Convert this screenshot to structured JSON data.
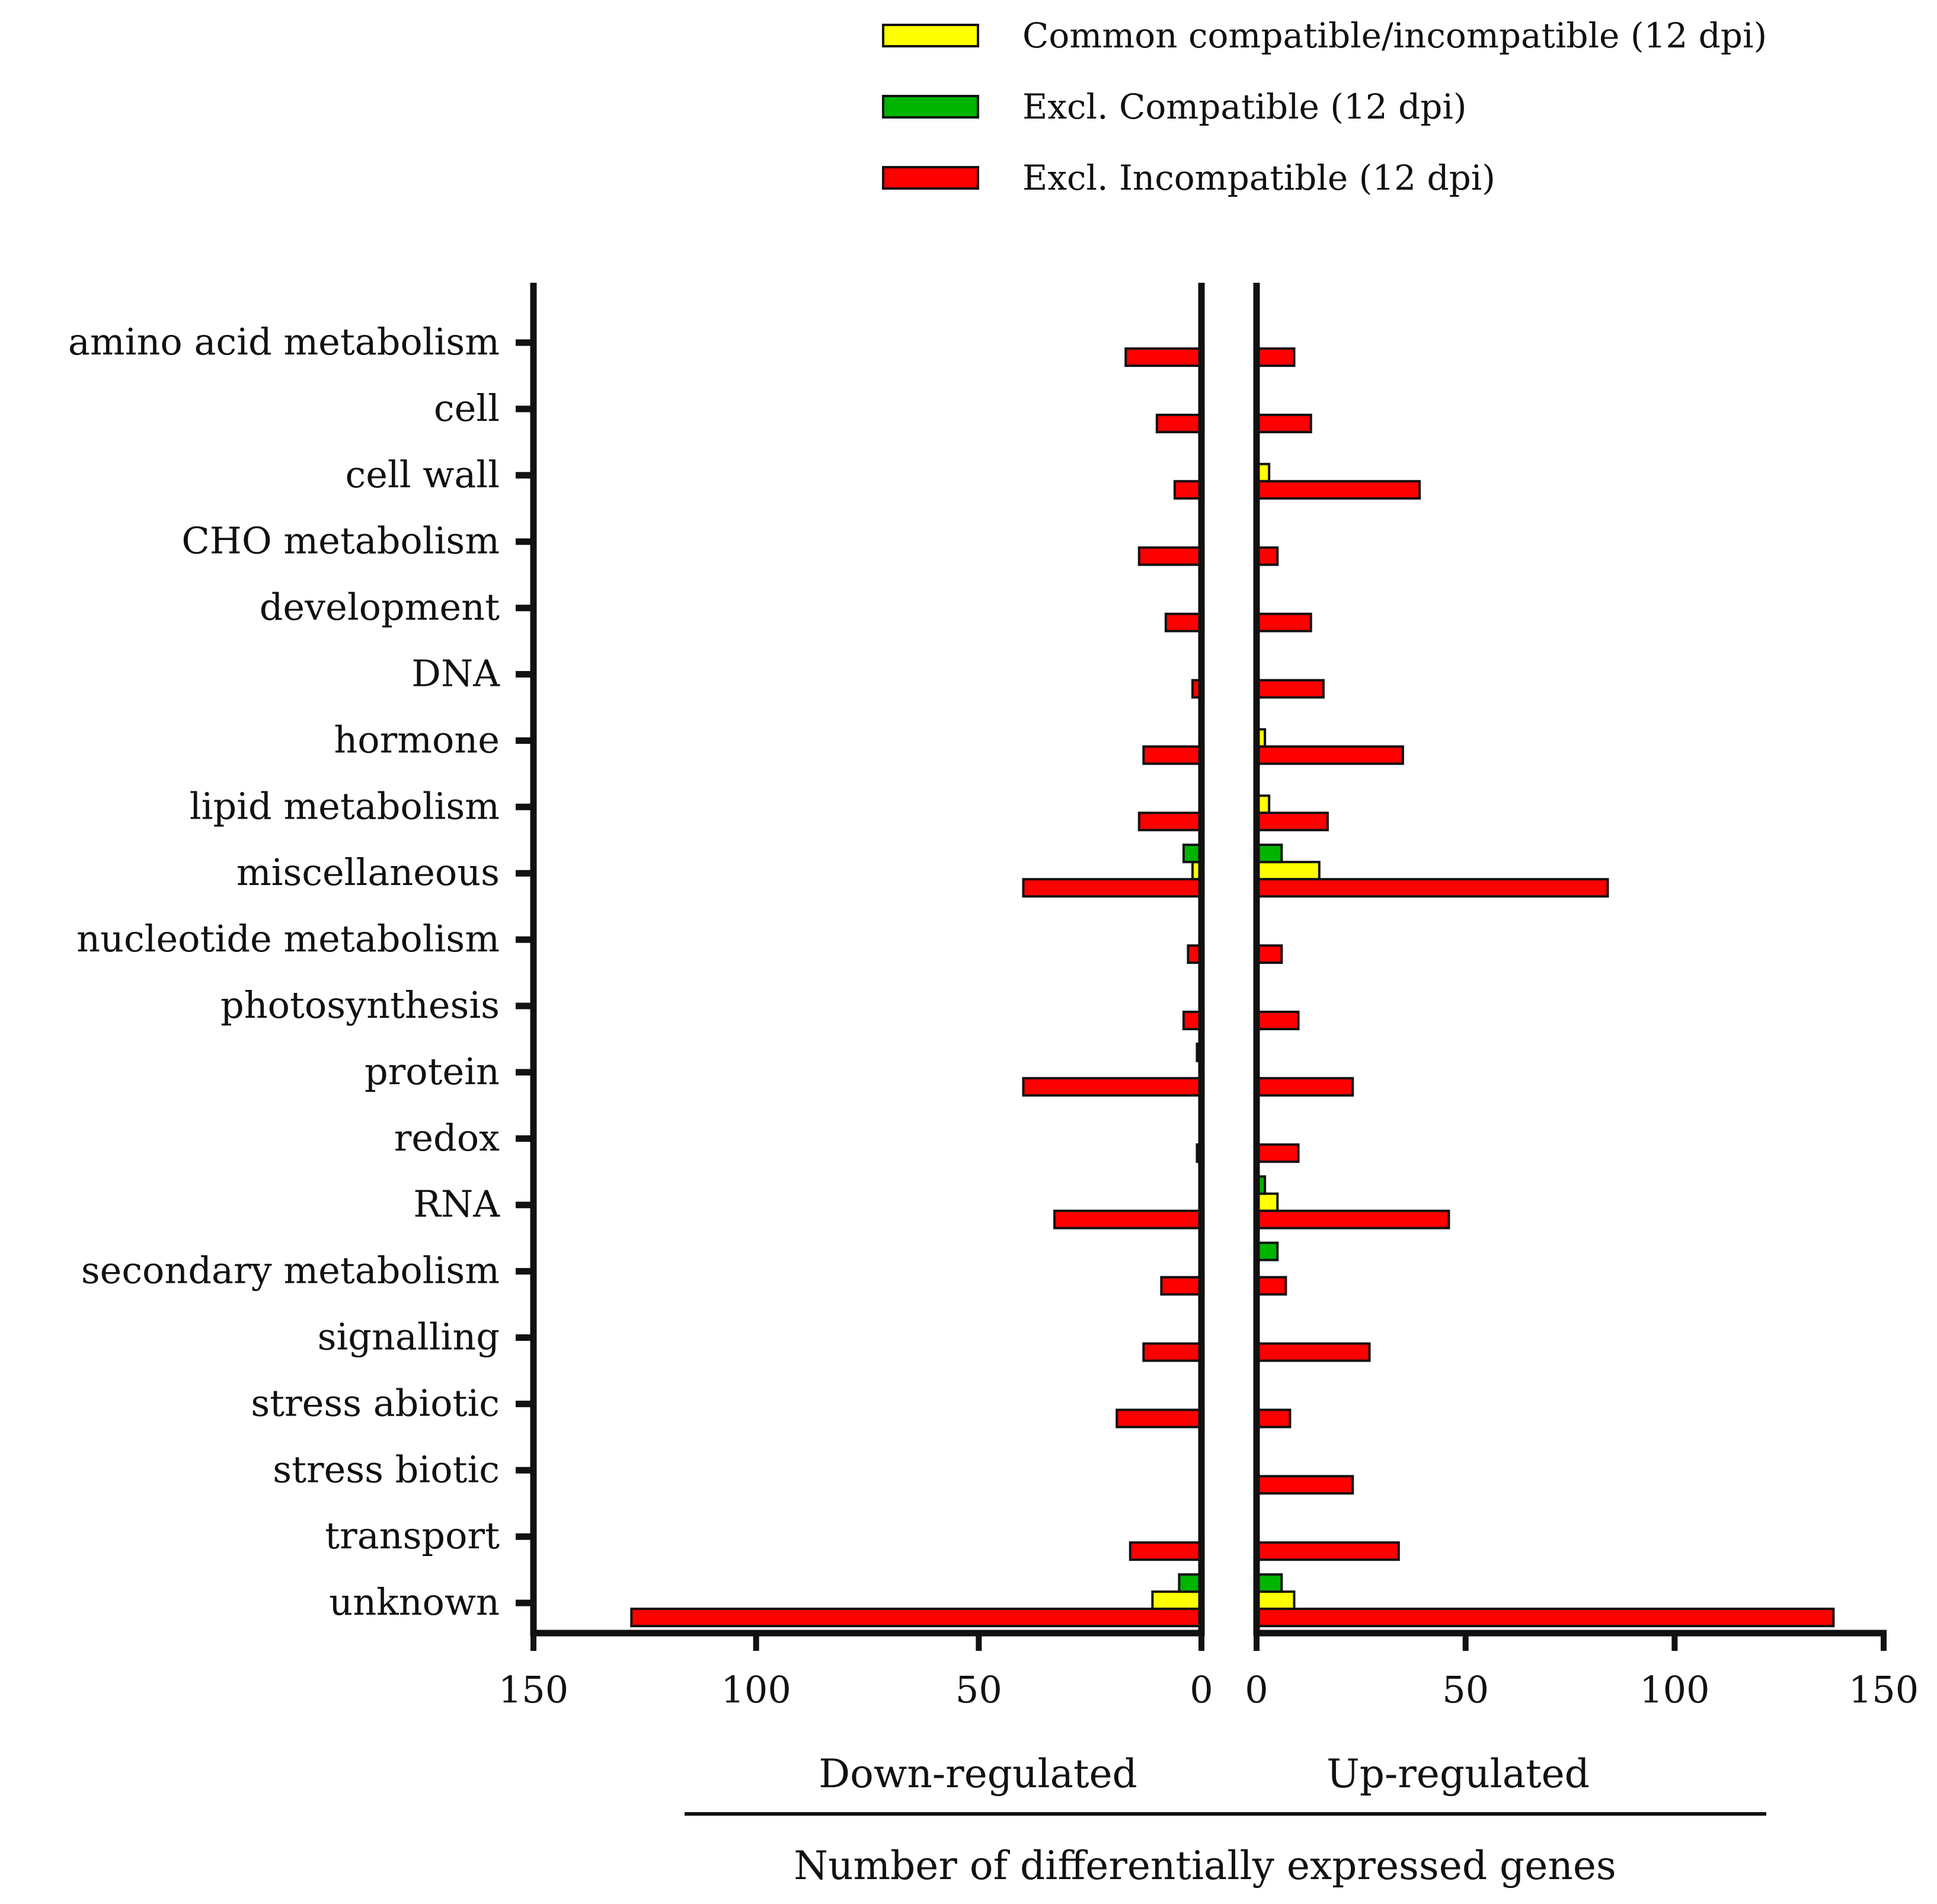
{
  "chart_data": {
    "type": "bar",
    "orientation": "horizontal",
    "layout": "mirrored (back-to-back) panels",
    "xlabel": "Number of differentially expressed genes",
    "panels": [
      {
        "name": "Down-regulated",
        "xlim": [
          150,
          0
        ],
        "ticks": [
          "150",
          "100",
          "50",
          "0"
        ]
      },
      {
        "name": "Up-regulated",
        "xlim": [
          0,
          150
        ],
        "ticks": [
          "0",
          "50",
          "100",
          "150"
        ]
      }
    ],
    "legend": {
      "position": "top-right"
    },
    "categories": [
      "amino acid metabolism",
      "cell",
      "cell wall",
      "CHO metabolism",
      "development",
      "DNA",
      "hormone",
      "lipid metabolism",
      "miscellaneous",
      "nucleotide metabolism",
      "photosynthesis",
      "protein",
      "redox",
      "RNA",
      "secondary metabolism",
      "signalling",
      "stress abiotic",
      "stress biotic",
      "transport",
      "unknown"
    ],
    "series": [
      {
        "name": "Common compatible/incompatible (12 dpi)",
        "color": "#ffff00",
        "down": [
          0,
          0,
          0,
          0,
          0,
          0,
          0,
          0,
          2,
          0,
          0,
          0,
          0,
          0,
          0,
          0,
          0,
          0,
          0,
          11
        ],
        "up": [
          0,
          0,
          3,
          0,
          0,
          0,
          2,
          3,
          15,
          0,
          0,
          0,
          0,
          5,
          0,
          0,
          0,
          0,
          0,
          9
        ]
      },
      {
        "name": "Excl. Compatible (12 dpi)",
        "color": "#00b400",
        "down": [
          0,
          0,
          0,
          0,
          0,
          0,
          0,
          0,
          4,
          0,
          0,
          1,
          0,
          0,
          0,
          0,
          0,
          0,
          0,
          5
        ],
        "up": [
          0,
          0,
          0,
          0,
          0,
          0,
          0,
          0,
          6,
          0,
          0,
          0,
          0,
          2,
          5,
          0,
          0,
          0,
          0,
          6
        ]
      },
      {
        "name": "Excl. Incompatible (12 dpi)",
        "color": "#ff0000",
        "down": [
          17,
          10,
          6,
          14,
          8,
          2,
          13,
          14,
          40,
          3,
          4,
          40,
          1,
          33,
          9,
          13,
          19,
          0,
          16,
          128
        ],
        "up": [
          9,
          13,
          39,
          5,
          13,
          16,
          35,
          17,
          84,
          6,
          10,
          23,
          10,
          46,
          7,
          27,
          8,
          23,
          34,
          138
        ]
      }
    ]
  }
}
